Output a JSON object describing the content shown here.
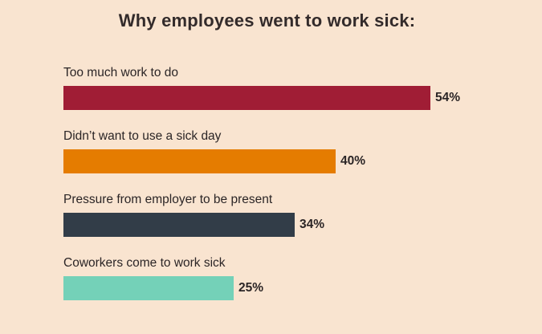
{
  "chart_data": {
    "type": "bar",
    "orientation": "horizontal",
    "title": "Why employees went to work sick:",
    "categories": [
      "Too much work to do",
      "Didn’t want to use a sick day",
      "Pressure from employer to be present",
      "Coworkers come to work sick"
    ],
    "values": [
      54,
      40,
      34,
      25
    ],
    "value_labels": [
      "54%",
      "40%",
      "34%",
      "25%"
    ],
    "colors": [
      "#a01d35",
      "#e57c00",
      "#323d48",
      "#74d1b8"
    ],
    "xlim": [
      0,
      54
    ],
    "grid": false,
    "legend": "none",
    "xlabel": "",
    "ylabel": ""
  },
  "background_color": "#f9e4d0"
}
